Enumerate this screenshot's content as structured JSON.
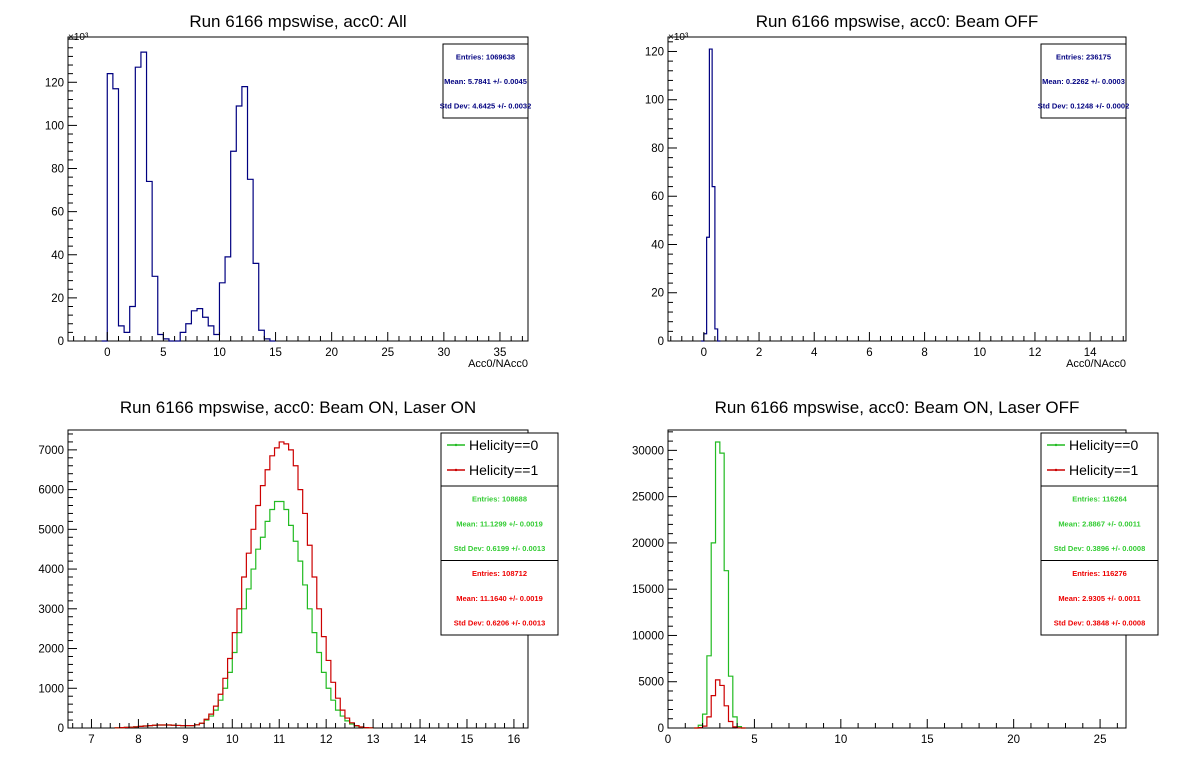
{
  "colors": {
    "all": "#000080",
    "h0": "#22bb22",
    "h1": "#cc0000",
    "frame": "#000000",
    "stat0": "#33cc33",
    "stat1": "#ee0000"
  },
  "chart_data": [
    {
      "type": "bar",
      "title": "Run 6166 mpswise, acc0: All",
      "xlabel": "Acc0/NAcc0",
      "ylabel": "",
      "xlim": [
        -3.5,
        37.5
      ],
      "ylim": [
        0,
        141
      ],
      "xticks": [
        0,
        5,
        10,
        15,
        20,
        25,
        30,
        35
      ],
      "yticks": [
        0,
        20,
        40,
        60,
        80,
        100,
        120
      ],
      "y_exponent": "×10³",
      "binwidth": 0.5,
      "stats": [
        "Entries: 1069638",
        "Mean: 5.7841 +/- 0.0045",
        "Std Dev: 4.6425 +/- 0.0032"
      ],
      "legend": [],
      "series": [
        {
          "color_key": "all",
          "x0": -0.5,
          "values": [
            0,
            124,
            117,
            7,
            4,
            16,
            127,
            134,
            74,
            30,
            3,
            1,
            0,
            0,
            4,
            8,
            14,
            15,
            11,
            7,
            3,
            27,
            39,
            88,
            109,
            118,
            75,
            36,
            5,
            1,
            0
          ]
        }
      ]
    },
    {
      "type": "bar",
      "title": "Run 6166 mpswise, acc0: Beam OFF",
      "xlabel": "Acc0/NAcc0",
      "ylabel": "",
      "xlim": [
        -1.3,
        15.3
      ],
      "ylim": [
        0,
        126
      ],
      "xticks": [
        0,
        2,
        4,
        6,
        8,
        10,
        12,
        14
      ],
      "yticks": [
        0,
        20,
        40,
        60,
        80,
        100,
        120
      ],
      "y_exponent": "×10³",
      "binwidth": 0.1,
      "stats": [
        "Entries: 236175",
        "Mean: 0.2262 +/- 0.0003",
        "Std Dev: 0.1248 +/- 0.0002"
      ],
      "legend": [],
      "series": [
        {
          "color_key": "all",
          "x0": -0.1,
          "values": [
            0,
            3,
            43,
            121,
            64,
            5,
            0
          ]
        }
      ]
    },
    {
      "type": "bar",
      "title": "Run 6166 mpswise, acc0: Beam ON, Laser ON",
      "xlabel": "",
      "ylabel": "",
      "xlim": [
        6.5,
        16.3
      ],
      "ylim": [
        0,
        7500
      ],
      "xticks": [
        7,
        8,
        9,
        10,
        11,
        12,
        13,
        14,
        15,
        16
      ],
      "yticks": [
        0,
        1000,
        2000,
        3000,
        4000,
        5000,
        6000,
        7000
      ],
      "y_exponent": "",
      "binwidth": 0.1,
      "stats": [
        "Entries: 108688",
        "Mean: 11.1299 +/- 0.0019",
        "Std Dev: 0.6199 +/- 0.0013",
        "Entries: 108712",
        "Mean: 11.1640 +/- 0.0019",
        "Std Dev: 0.6206 +/- 0.0013"
      ],
      "legend": [
        "Helicity==0",
        "Helicity==1"
      ],
      "series": [
        {
          "name": "Helicity==0",
          "color_key": "h0",
          "x0": 7.5,
          "values": [
            5,
            10,
            15,
            20,
            30,
            40,
            50,
            60,
            70,
            75,
            75,
            75,
            70,
            65,
            60,
            60,
            60,
            80,
            120,
            200,
            300,
            450,
            700,
            1000,
            1400,
            1900,
            2400,
            3000,
            3500,
            4000,
            4500,
            4800,
            5200,
            5500,
            5700,
            5700,
            5500,
            5100,
            4700,
            4200,
            3600,
            3000,
            2400,
            1900,
            1400,
            1000,
            700,
            450,
            300,
            180,
            100,
            50,
            25,
            10,
            5
          ]
        },
        {
          "name": "Helicity==1",
          "color_key": "h1",
          "x0": 7.5,
          "values": [
            5,
            10,
            15,
            20,
            30,
            40,
            50,
            60,
            70,
            75,
            75,
            75,
            70,
            65,
            60,
            60,
            60,
            80,
            120,
            220,
            350,
            550,
            850,
            1250,
            1750,
            2400,
            3000,
            3800,
            4400,
            5000,
            5600,
            6100,
            6500,
            6850,
            7050,
            7200,
            7150,
            7000,
            6600,
            6000,
            5400,
            4600,
            3800,
            3000,
            2300,
            1700,
            1150,
            750,
            450,
            250,
            130,
            60,
            25,
            10,
            5
          ]
        }
      ]
    },
    {
      "type": "bar",
      "title": "Run 6166 mpswise, acc0: Beam ON, Laser OFF",
      "xlabel": "",
      "ylabel": "",
      "xlim": [
        0,
        26.5
      ],
      "ylim": [
        0,
        32200
      ],
      "xticks": [
        0,
        5,
        10,
        15,
        20,
        25
      ],
      "yticks": [
        0,
        5000,
        10000,
        15000,
        20000,
        25000,
        30000
      ],
      "y_exponent": "",
      "binwidth": 0.25,
      "stats": [
        "Entries: 116264",
        "Mean: 2.8867 +/- 0.0011",
        "Std Dev: 0.3896 +/- 0.0008",
        "Entries: 116276",
        "Mean: 2.9305 +/- 0.0011",
        "Std Dev: 0.3848 +/- 0.0008"
      ],
      "legend": [
        "Helicity==0",
        "Helicity==1"
      ],
      "series": [
        {
          "name": "Helicity==0",
          "color_key": "h0",
          "x0": 1.5,
          "values": [
            0,
            300,
            1500,
            7800,
            20000,
            30900,
            29700,
            17000,
            5600,
            1200,
            150,
            0
          ]
        },
        {
          "name": "Helicity==1",
          "color_key": "h1",
          "x0": 1.5,
          "values": [
            0,
            50,
            200,
            1200,
            3500,
            5200,
            4600,
            2400,
            700,
            120,
            20,
            0
          ]
        }
      ]
    }
  ]
}
